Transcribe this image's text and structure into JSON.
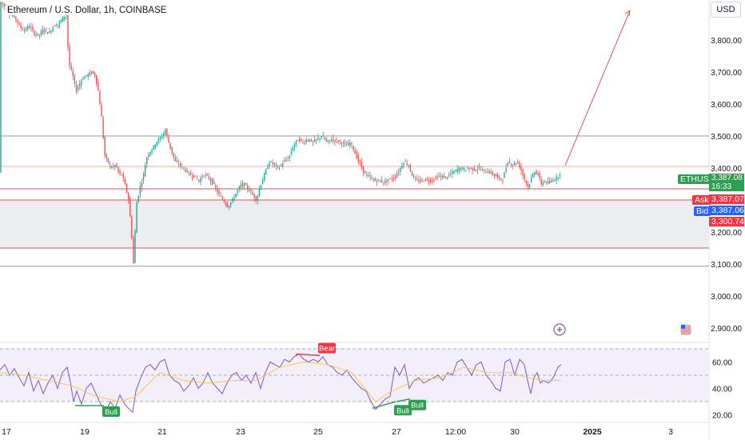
{
  "header": {
    "title": "Ethereum / U.S. Dollar, 1h, COINBASE",
    "currency": "USD"
  },
  "chart_data": {
    "type": "candlestick",
    "symbol": "ETHUSD",
    "ylim": [
      2900,
      3900
    ],
    "y_ticks": [
      "3,800.00",
      "3,700.00",
      "3,600.00",
      "3,500.00",
      "3,400.00",
      "3,300.00",
      "3,200.00",
      "3,100.00",
      "3,000.00",
      "2,900.00"
    ],
    "y_tick_values": [
      3800,
      3700,
      3600,
      3500,
      3400,
      3300,
      3200,
      3100,
      3000,
      2900
    ],
    "x_ticks": [
      "17",
      "19",
      "21",
      "23",
      "25",
      "27",
      "12:00",
      "30",
      "2025",
      "3"
    ],
    "price_path": [
      [
        0,
        3925
      ],
      [
        8,
        3900
      ],
      [
        14,
        3880
      ],
      [
        20,
        3870
      ],
      [
        26,
        3840
      ],
      [
        32,
        3830
      ],
      [
        38,
        3845
      ],
      [
        44,
        3820
      ],
      [
        50,
        3815
      ],
      [
        56,
        3835
      ],
      [
        62,
        3820
      ],
      [
        68,
        3845
      ],
      [
        74,
        3850
      ],
      [
        80,
        3870
      ],
      [
        84,
        3880
      ],
      [
        86,
        3780
      ],
      [
        88,
        3720
      ],
      [
        92,
        3690
      ],
      [
        96,
        3640
      ],
      [
        100,
        3660
      ],
      [
        104,
        3680
      ],
      [
        110,
        3690
      ],
      [
        116,
        3700
      ],
      [
        120,
        3690
      ],
      [
        124,
        3640
      ],
      [
        128,
        3560
      ],
      [
        132,
        3440
      ],
      [
        136,
        3420
      ],
      [
        140,
        3400
      ],
      [
        146,
        3410
      ],
      [
        150,
        3380
      ],
      [
        154,
        3380
      ],
      [
        158,
        3340
      ],
      [
        162,
        3300
      ],
      [
        166,
        3180
      ],
      [
        168,
        3100
      ],
      [
        170,
        3200
      ],
      [
        172,
        3290
      ],
      [
        176,
        3340
      ],
      [
        180,
        3370
      ],
      [
        184,
        3430
      ],
      [
        188,
        3450
      ],
      [
        192,
        3460
      ],
      [
        196,
        3480
      ],
      [
        200,
        3490
      ],
      [
        204,
        3500
      ],
      [
        208,
        3520
      ],
      [
        212,
        3480
      ],
      [
        216,
        3450
      ],
      [
        220,
        3420
      ],
      [
        226,
        3410
      ],
      [
        232,
        3395
      ],
      [
        238,
        3380
      ],
      [
        244,
        3375
      ],
      [
        250,
        3360
      ],
      [
        256,
        3380
      ],
      [
        262,
        3370
      ],
      [
        268,
        3350
      ],
      [
        274,
        3320
      ],
      [
        280,
        3300
      ],
      [
        286,
        3280
      ],
      [
        292,
        3300
      ],
      [
        298,
        3330
      ],
      [
        304,
        3350
      ],
      [
        310,
        3340
      ],
      [
        316,
        3320
      ],
      [
        322,
        3300
      ],
      [
        326,
        3340
      ],
      [
        332,
        3380
      ],
      [
        338,
        3420
      ],
      [
        344,
        3410
      ],
      [
        350,
        3400
      ],
      [
        356,
        3420
      ],
      [
        362,
        3430
      ],
      [
        368,
        3470
      ],
      [
        374,
        3490
      ],
      [
        380,
        3480
      ],
      [
        386,
        3490
      ],
      [
        392,
        3480
      ],
      [
        398,
        3490
      ],
      [
        404,
        3500
      ],
      [
        410,
        3480
      ],
      [
        416,
        3490
      ],
      [
        422,
        3485
      ],
      [
        428,
        3480
      ],
      [
        434,
        3470
      ],
      [
        440,
        3480
      ],
      [
        446,
        3440
      ],
      [
        452,
        3410
      ],
      [
        458,
        3380
      ],
      [
        464,
        3370
      ],
      [
        470,
        3360
      ],
      [
        476,
        3360
      ],
      [
        482,
        3355
      ],
      [
        488,
        3365
      ],
      [
        494,
        3370
      ],
      [
        500,
        3390
      ],
      [
        506,
        3420
      ],
      [
        512,
        3410
      ],
      [
        516,
        3380
      ],
      [
        522,
        3360
      ],
      [
        528,
        3360
      ],
      [
        534,
        3365
      ],
      [
        540,
        3360
      ],
      [
        546,
        3370
      ],
      [
        552,
        3375
      ],
      [
        558,
        3370
      ],
      [
        564,
        3380
      ],
      [
        570,
        3390
      ],
      [
        576,
        3400
      ],
      [
        582,
        3395
      ],
      [
        588,
        3400
      ],
      [
        594,
        3395
      ],
      [
        600,
        3400
      ],
      [
        606,
        3390
      ],
      [
        612,
        3390
      ],
      [
        618,
        3380
      ],
      [
        624,
        3370
      ],
      [
        630,
        3365
      ],
      [
        636,
        3420
      ],
      [
        642,
        3410
      ],
      [
        648,
        3420
      ],
      [
        652,
        3400
      ],
      [
        658,
        3360
      ],
      [
        662,
        3340
      ],
      [
        666,
        3370
      ],
      [
        670,
        3390
      ],
      [
        674,
        3380
      ],
      [
        678,
        3350
      ],
      [
        682,
        3360
      ],
      [
        686,
        3350
      ],
      [
        690,
        3360
      ],
      [
        694,
        3365
      ],
      [
        698,
        3370
      ],
      [
        702,
        3387
      ]
    ],
    "horizontal_levels": [
      {
        "value": 3500,
        "color": "#9598a1"
      },
      {
        "value": 3405,
        "color": "#f7a9a9"
      },
      {
        "value": 3335,
        "color": "#e2534c"
      },
      {
        "value": 3300,
        "color": "#e2534c"
      },
      {
        "value": 3150,
        "color": "#e2534c"
      },
      {
        "value": 3093,
        "color": "#9598a1"
      }
    ],
    "zone": {
      "from": 3150,
      "to": 3300,
      "color": "#ebedf1"
    },
    "arrow": {
      "from": [
        707,
        3408
      ],
      "to": [
        788,
        3892
      ],
      "color": "#e2534c"
    },
    "price_labels": [
      {
        "name": "ETHUSD",
        "value": "3,387.08",
        "sub": "16:33",
        "color": "#2e9e4f"
      },
      {
        "name": "Ask",
        "value": "3,387.07",
        "color": "#f23645"
      },
      {
        "name": "Bid",
        "value": "3,387.06",
        "color": "#2962ff"
      },
      {
        "value": "3,300.74",
        "color": "#f23645"
      }
    ],
    "rsi": {
      "ylim": [
        15,
        72
      ],
      "y_ticks": [
        "60.00",
        "40.00",
        "20.00"
      ],
      "y_tick_values": [
        60,
        40,
        20
      ],
      "bands": [
        70,
        50,
        30
      ],
      "rsi_path": [
        [
          0,
          54
        ],
        [
          6,
          58
        ],
        [
          12,
          50
        ],
        [
          18,
          55
        ],
        [
          24,
          48
        ],
        [
          30,
          42
        ],
        [
          36,
          52
        ],
        [
          42,
          38
        ],
        [
          48,
          46
        ],
        [
          54,
          36
        ],
        [
          60,
          44
        ],
        [
          66,
          50
        ],
        [
          72,
          40
        ],
        [
          78,
          52
        ],
        [
          84,
          56
        ],
        [
          88,
          45
        ],
        [
          92,
          30
        ],
        [
          96,
          38
        ],
        [
          102,
          28
        ],
        [
          108,
          40
        ],
        [
          114,
          44
        ],
        [
          120,
          36
        ],
        [
          126,
          28
        ],
        [
          132,
          22
        ],
        [
          138,
          30
        ],
        [
          144,
          25
        ],
        [
          150,
          35
        ],
        [
          156,
          28
        ],
        [
          162,
          24
        ],
        [
          166,
          22
        ],
        [
          170,
          38
        ],
        [
          176,
          48
        ],
        [
          182,
          56
        ],
        [
          188,
          58
        ],
        [
          194,
          54
        ],
        [
          200,
          60
        ],
        [
          206,
          62
        ],
        [
          212,
          50
        ],
        [
          218,
          46
        ],
        [
          224,
          44
        ],
        [
          230,
          38
        ],
        [
          236,
          42
        ],
        [
          242,
          48
        ],
        [
          248,
          40
        ],
        [
          254,
          44
        ],
        [
          260,
          52
        ],
        [
          266,
          44
        ],
        [
          272,
          40
        ],
        [
          278,
          36
        ],
        [
          284,
          44
        ],
        [
          290,
          50
        ],
        [
          296,
          52
        ],
        [
          302,
          46
        ],
        [
          308,
          50
        ],
        [
          314,
          44
        ],
        [
          320,
          52
        ],
        [
          326,
          40
        ],
        [
          332,
          52
        ],
        [
          338,
          60
        ],
        [
          344,
          58
        ],
        [
          350,
          56
        ],
        [
          356,
          62
        ],
        [
          362,
          60
        ],
        [
          368,
          64
        ],
        [
          374,
          66
        ],
        [
          380,
          62
        ],
        [
          386,
          60
        ],
        [
          392,
          62
        ],
        [
          398,
          60
        ],
        [
          404,
          64
        ],
        [
          410,
          58
        ],
        [
          416,
          56
        ],
        [
          422,
          52
        ],
        [
          428,
          50
        ],
        [
          434,
          54
        ],
        [
          440,
          48
        ],
        [
          446,
          44
        ],
        [
          452,
          40
        ],
        [
          458,
          38
        ],
        [
          464,
          30
        ],
        [
          470,
          24
        ],
        [
          476,
          28
        ],
        [
          482,
          32
        ],
        [
          488,
          34
        ],
        [
          494,
          56
        ],
        [
          500,
          50
        ],
        [
          506,
          58
        ],
        [
          512,
          40
        ],
        [
          518,
          46
        ],
        [
          524,
          48
        ],
        [
          530,
          44
        ],
        [
          536,
          46
        ],
        [
          542,
          48
        ],
        [
          548,
          50
        ],
        [
          554,
          46
        ],
        [
          560,
          52
        ],
        [
          566,
          50
        ],
        [
          572,
          60
        ],
        [
          578,
          62
        ],
        [
          584,
          56
        ],
        [
          590,
          50
        ],
        [
          596,
          58
        ],
        [
          602,
          60
        ],
        [
          608,
          50
        ],
        [
          614,
          46
        ],
        [
          620,
          40
        ],
        [
          626,
          38
        ],
        [
          632,
          60
        ],
        [
          638,
          62
        ],
        [
          644,
          50
        ],
        [
          650,
          62
        ],
        [
          656,
          58
        ],
        [
          660,
          46
        ],
        [
          664,
          36
        ],
        [
          668,
          48
        ],
        [
          672,
          52
        ],
        [
          676,
          44
        ],
        [
          680,
          46
        ],
        [
          686,
          44
        ],
        [
          692,
          48
        ],
        [
          698,
          56
        ],
        [
          702,
          58
        ]
      ],
      "ma_path": [
        [
          0,
          52
        ],
        [
          30,
          50
        ],
        [
          60,
          46
        ],
        [
          90,
          42
        ],
        [
          120,
          34
        ],
        [
          150,
          30
        ],
        [
          170,
          34
        ],
        [
          200,
          52
        ],
        [
          230,
          46
        ],
        [
          260,
          44
        ],
        [
          290,
          46
        ],
        [
          320,
          46
        ],
        [
          350,
          56
        ],
        [
          380,
          60
        ],
        [
          410,
          58
        ],
        [
          440,
          52
        ],
        [
          470,
          30
        ],
        [
          490,
          38
        ],
        [
          520,
          46
        ],
        [
          550,
          48
        ],
        [
          580,
          56
        ],
        [
          610,
          52
        ],
        [
          640,
          52
        ],
        [
          660,
          48
        ],
        [
          680,
          46
        ],
        [
          702,
          46
        ]
      ],
      "divergences": [
        {
          "label": "Bull",
          "from": [
            94,
            27
          ],
          "to": [
            130,
            27
          ],
          "color": "#2e9e4f",
          "label_pos": [
            130,
            27
          ]
        },
        {
          "label": "Bear",
          "from": [
            370,
            66
          ],
          "to": [
            400,
            65
          ],
          "color": "#f23645",
          "label_pos": [
            400,
            66
          ]
        },
        {
          "label": "Bull",
          "from": [
            466,
            25
          ],
          "to": [
            495,
            30
          ],
          "color": "#2e9e4f",
          "label_pos": [
            495,
            28
          ]
        },
        {
          "label": "Bull",
          "from": [
            496,
            30
          ],
          "to": [
            513,
            32
          ],
          "color": "#2e9e4f",
          "label_pos": [
            513,
            32
          ]
        }
      ]
    }
  },
  "icons": {
    "plus": "plus-circle-icon",
    "flag": "us-flag-icon"
  }
}
